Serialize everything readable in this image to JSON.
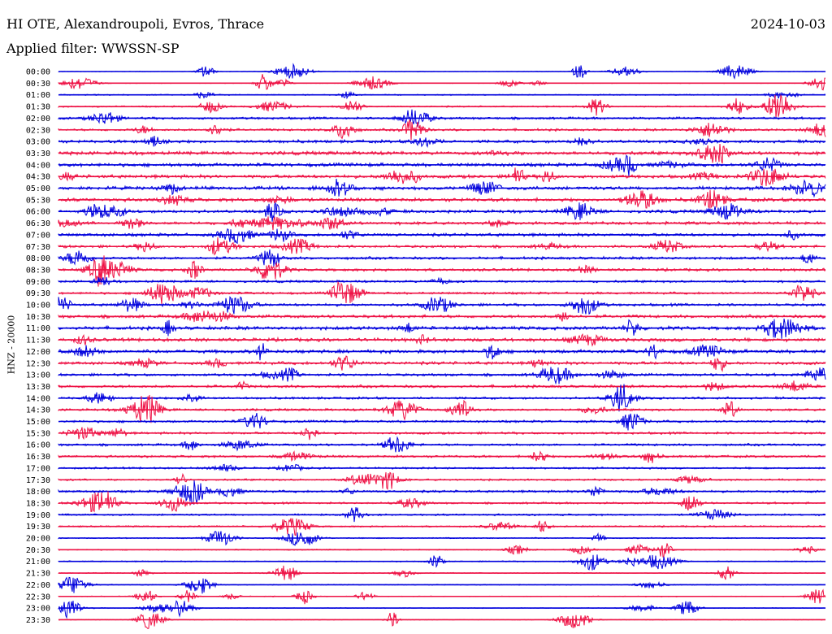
{
  "header": {
    "station": "HI OTE, Alexandroupoli, Evros, Thrace",
    "date": "2024-10-03",
    "filter": "Applied filter: WWSSN-SP"
  },
  "chart_data": {
    "type": "line",
    "title": "HI OTE, Alexandroupoli, Evros, Thrace",
    "ylabel": "HNZ - 20000",
    "xlabel": "",
    "trace_colors": [
      "#0000dd",
      "#ee1144"
    ],
    "rows": [
      "00:00",
      "00:30",
      "01:00",
      "01:30",
      "02:00",
      "02:30",
      "03:00",
      "03:30",
      "04:00",
      "04:30",
      "05:00",
      "05:30",
      "06:00",
      "06:30",
      "07:00",
      "07:30",
      "08:00",
      "08:30",
      "09:00",
      "09:30",
      "10:00",
      "10:30",
      "11:00",
      "11:30",
      "12:00",
      "12:30",
      "13:00",
      "13:30",
      "14:00",
      "14:30",
      "15:00",
      "15:30",
      "16:00",
      "16:30",
      "17:00",
      "17:30",
      "18:00",
      "18:30",
      "19:00",
      "19:30",
      "20:00",
      "20:30",
      "21:00",
      "21:30",
      "22:00",
      "22:30",
      "23:00",
      "23:30"
    ],
    "noise_level": [
      0.3,
      0.3,
      0.6,
      0.8,
      1.2,
      1.2,
      1.6,
      1.8,
      1.8,
      1.8,
      1.8,
      1.8,
      1.6,
      1.6,
      1.6,
      1.4,
      1.4,
      1.4,
      1.2,
      1.2,
      1.4,
      1.6,
      1.8,
      1.8,
      1.8,
      1.6,
      1.4,
      1.4,
      1.2,
      1.2,
      1.2,
      1.2,
      1.2,
      1.2,
      1.0,
      1.0,
      1.2,
      1.0,
      1.0,
      0.8,
      0.6,
      0.6,
      0.6,
      0.5,
      0.5,
      0.4,
      0.4,
      0.3
    ]
  }
}
